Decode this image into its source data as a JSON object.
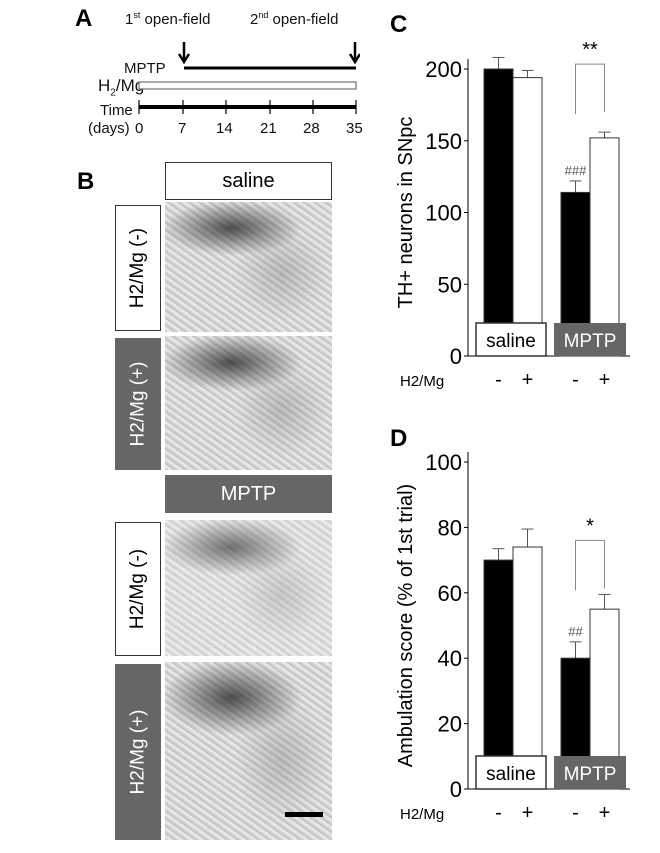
{
  "panelA": {
    "label": "A",
    "first": "1",
    "first_sup": "st",
    "second": "2",
    "second_sup": "nd",
    "open_field": " open-field",
    "mptp": "MPTP",
    "h2mg": "H",
    "h2mg_sub": "2",
    "h2mg_rest": "/Mg",
    "time": "Time",
    "days": "(days)",
    "ticks": [
      "0",
      "7",
      "14",
      "21",
      "28",
      "35"
    ]
  },
  "panelB": {
    "label": "B",
    "saline": "saline",
    "mptp": "MPTP",
    "neg": "H2/Mg (-)",
    "pos": "H2/Mg (+)"
  },
  "chart_data": [
    {
      "id": "C",
      "type": "bar",
      "panel_label": "C",
      "ylabel": "TH+ neurons in SNpc",
      "ylim": [
        0,
        200
      ],
      "yticks": [
        0,
        50,
        100,
        150,
        200
      ],
      "groups": [
        "saline",
        "MPTP"
      ],
      "factor_label": "H2/Mg",
      "factor_levels": [
        "-",
        "+",
        "-",
        "+"
      ],
      "values": [
        200,
        194,
        114,
        152
      ],
      "errors": [
        8,
        5,
        8,
        4
      ],
      "annotations": [
        "###",
        "**"
      ]
    },
    {
      "id": "D",
      "type": "bar",
      "panel_label": "D",
      "ylabel": "Ambulation score (% of 1st trial)",
      "ylim": [
        0,
        100
      ],
      "yticks": [
        0,
        20,
        40,
        60,
        80,
        100
      ],
      "groups": [
        "saline",
        "MPTP"
      ],
      "factor_label": "H2/Mg",
      "factor_levels": [
        "-",
        "+",
        "-",
        "+"
      ],
      "values": [
        70,
        74,
        40,
        55
      ],
      "errors": [
        3.5,
        5.5,
        5,
        4.5
      ],
      "annotations": [
        "##",
        "*"
      ]
    }
  ]
}
